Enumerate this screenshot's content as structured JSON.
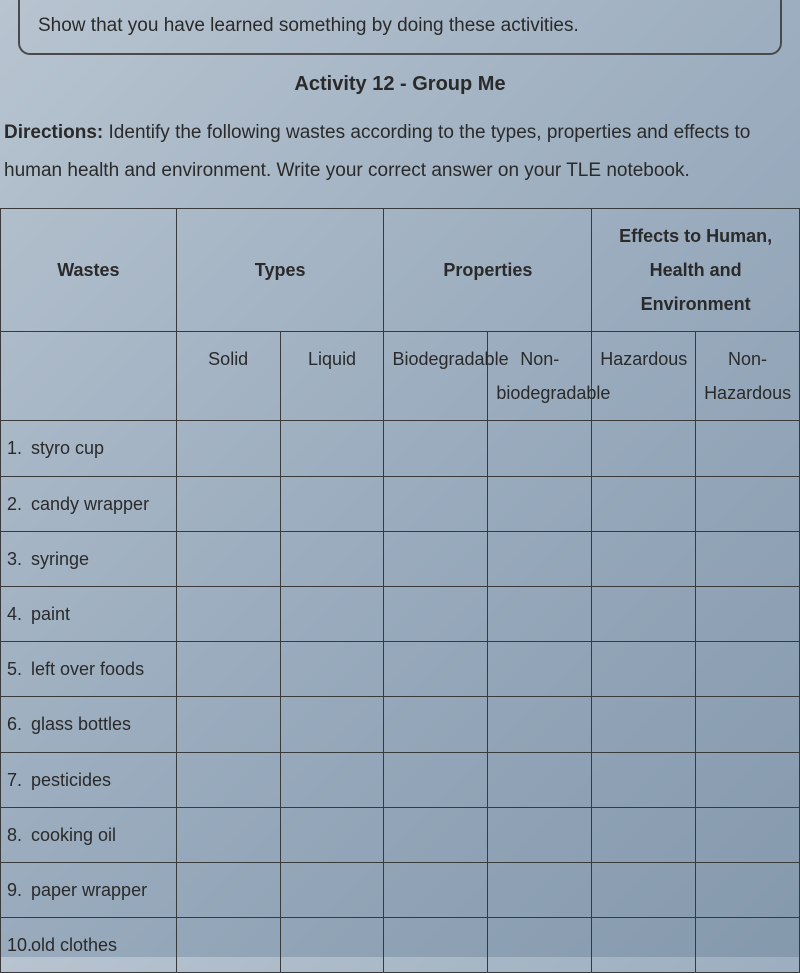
{
  "instruction": "Show that you have learned something by doing these activities.",
  "activity_title": "Activity 12 - Group Me",
  "directions_label": "Directions:",
  "directions_text": " Identify the following wastes according to the types, properties and effects to human health and environment. Write your correct answer on your TLE notebook.",
  "headers": {
    "wastes": "Wastes",
    "types": "Types",
    "properties": "Properties",
    "effects": "Effects to Human, Health and  Environment",
    "solid": "Solid",
    "liquid": "Liquid",
    "biodegradable": "Biodegradable",
    "nonbiodegradable": "Non-biodegradable",
    "hazardous": "Hazardous",
    "nonhazardous": "Non-Hazardous"
  },
  "wastes": [
    {
      "num": "1.",
      "name": "styro cup"
    },
    {
      "num": "2.",
      "name": "candy wrapper"
    },
    {
      "num": "3.",
      "name": "syringe"
    },
    {
      "num": "4.",
      "name": "paint"
    },
    {
      "num": "5.",
      "name": "left over foods"
    },
    {
      "num": "6.",
      "name": "glass bottles"
    },
    {
      "num": "7.",
      "name": "pesticides"
    },
    {
      "num": "8.",
      "name": "cooking oil"
    },
    {
      "num": "9.",
      "name": "paper wrapper"
    },
    {
      "num": "10.",
      "name": "old clothes"
    }
  ],
  "styling": {
    "background_gradient": [
      "#b8c4d0",
      "#9aacbe",
      "#8599ad"
    ],
    "border_color": "#3a3a3a",
    "text_color": "#2a2a2a",
    "font_family": "Arial, sans-serif",
    "base_fontsize": 19,
    "title_fontsize": 20,
    "table_fontsize": 18,
    "column_widths_pct": {
      "wastes": 22,
      "type": 8,
      "prop": 12,
      "effect": 15
    }
  }
}
